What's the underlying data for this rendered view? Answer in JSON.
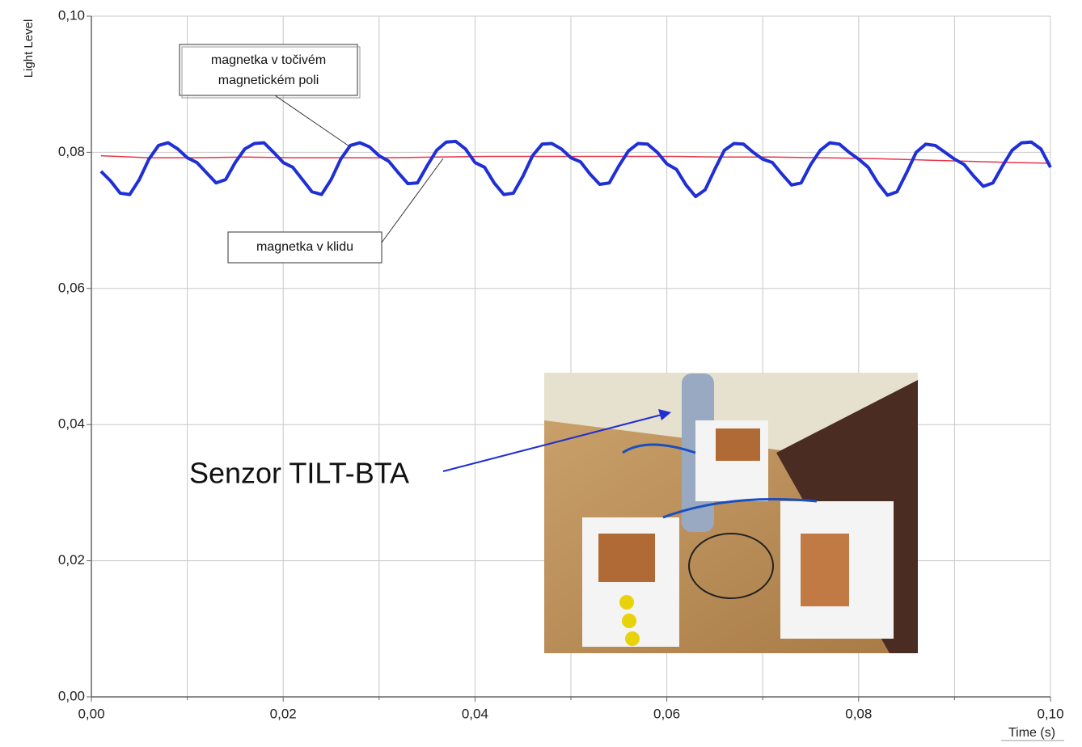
{
  "chart_data": {
    "type": "line",
    "xlabel": "Time (s)",
    "ylabel": "Light Level",
    "xlim": [
      0,
      0.1
    ],
    "ylim": [
      0,
      0.1
    ],
    "xticks": [
      {
        "value": 0,
        "label": "0,00"
      },
      {
        "value": 0.02,
        "label": "0,02"
      },
      {
        "value": 0.04,
        "label": "0,04"
      },
      {
        "value": 0.06,
        "label": "0,06"
      },
      {
        "value": 0.08,
        "label": "0,08"
      },
      {
        "value": 0.1,
        "label": "0,10"
      }
    ],
    "xminor_grid": [
      0.01,
      0.03,
      0.05,
      0.07,
      0.09
    ],
    "yticks": [
      {
        "value": 0,
        "label": "0,00"
      },
      {
        "value": 0.02,
        "label": "0,02"
      },
      {
        "value": 0.04,
        "label": "0,04"
      },
      {
        "value": 0.06,
        "label": "0,06"
      },
      {
        "value": 0.08,
        "label": "0,08"
      },
      {
        "value": 0.1,
        "label": "0,10"
      }
    ],
    "grid": true,
    "series": [
      {
        "color": "#1f2fd6",
        "x": [
          0.001,
          0.002,
          0.003,
          0.004,
          0.005,
          0.006,
          0.007,
          0.008,
          0.009,
          0.01,
          0.011,
          0.012,
          0.013,
          0.014,
          0.015,
          0.016,
          0.017,
          0.018,
          0.019,
          0.02,
          0.021,
          0.022,
          0.023,
          0.024,
          0.025,
          0.026,
          0.027,
          0.028,
          0.029,
          0.03,
          0.031,
          0.032,
          0.033,
          0.034,
          0.035,
          0.036,
          0.037,
          0.038,
          0.039,
          0.04,
          0.041,
          0.042,
          0.043,
          0.044,
          0.045,
          0.046,
          0.047,
          0.048,
          0.049,
          0.05,
          0.051,
          0.052,
          0.053,
          0.054,
          0.055,
          0.056,
          0.057,
          0.058,
          0.059,
          0.06,
          0.061,
          0.062,
          0.063,
          0.064,
          0.065,
          0.066,
          0.067,
          0.068,
          0.069,
          0.07,
          0.071,
          0.072,
          0.073,
          0.074,
          0.075,
          0.076,
          0.077,
          0.078,
          0.079,
          0.08,
          0.081,
          0.082,
          0.083,
          0.084,
          0.085,
          0.086,
          0.087,
          0.088,
          0.089,
          0.09,
          0.091,
          0.092,
          0.093,
          0.094,
          0.095,
          0.096,
          0.097,
          0.098,
          0.099,
          0.1
        ],
        "values": [
          0.0772,
          0.0758,
          0.074,
          0.0738,
          0.076,
          0.079,
          0.081,
          0.0814,
          0.0805,
          0.0792,
          0.0785,
          0.077,
          0.0755,
          0.076,
          0.0785,
          0.0805,
          0.0813,
          0.0814,
          0.08,
          0.0785,
          0.0778,
          0.076,
          0.0742,
          0.0738,
          0.076,
          0.079,
          0.081,
          0.0814,
          0.0808,
          0.0795,
          0.0787,
          0.077,
          0.0754,
          0.0755,
          0.078,
          0.0803,
          0.0815,
          0.0816,
          0.0805,
          0.0785,
          0.0778,
          0.0755,
          0.0738,
          0.074,
          0.0765,
          0.0795,
          0.0812,
          0.0813,
          0.0805,
          0.0792,
          0.0786,
          0.0768,
          0.0753,
          0.0755,
          0.078,
          0.0802,
          0.0813,
          0.0812,
          0.08,
          0.0783,
          0.0775,
          0.0752,
          0.0735,
          0.0745,
          0.0775,
          0.0803,
          0.0813,
          0.0812,
          0.08,
          0.079,
          0.0785,
          0.0768,
          0.0752,
          0.0755,
          0.0782,
          0.0803,
          0.0814,
          0.0812,
          0.08,
          0.079,
          0.0778,
          0.0755,
          0.0737,
          0.0742,
          0.077,
          0.08,
          0.0812,
          0.081,
          0.08,
          0.079,
          0.0782,
          0.0765,
          0.075,
          0.0755,
          0.078,
          0.0803,
          0.0814,
          0.0815,
          0.0805,
          0.0778
        ]
      },
      {
        "color": "#e8354a",
        "x": [
          0.001,
          0.006,
          0.011,
          0.016,
          0.021,
          0.026,
          0.031,
          0.036,
          0.041,
          0.046,
          0.051,
          0.056,
          0.061,
          0.066,
          0.071,
          0.076,
          0.081,
          0.086,
          0.091,
          0.096,
          0.1
        ],
        "values": [
          0.0795,
          0.0792,
          0.0792,
          0.0793,
          0.0792,
          0.0792,
          0.0792,
          0.0793,
          0.0794,
          0.0794,
          0.0794,
          0.0794,
          0.0794,
          0.0793,
          0.0793,
          0.0792,
          0.0791,
          0.0789,
          0.0787,
          0.0785,
          0.0784
        ]
      }
    ],
    "annotations": [
      {
        "lines": [
          "magnetka v točivém",
          "magnetickém poli"
        ]
      },
      {
        "lines": [
          "magnetka v klidu"
        ]
      },
      {
        "lines": [
          "Senzor TILT-BTA"
        ]
      }
    ]
  }
}
